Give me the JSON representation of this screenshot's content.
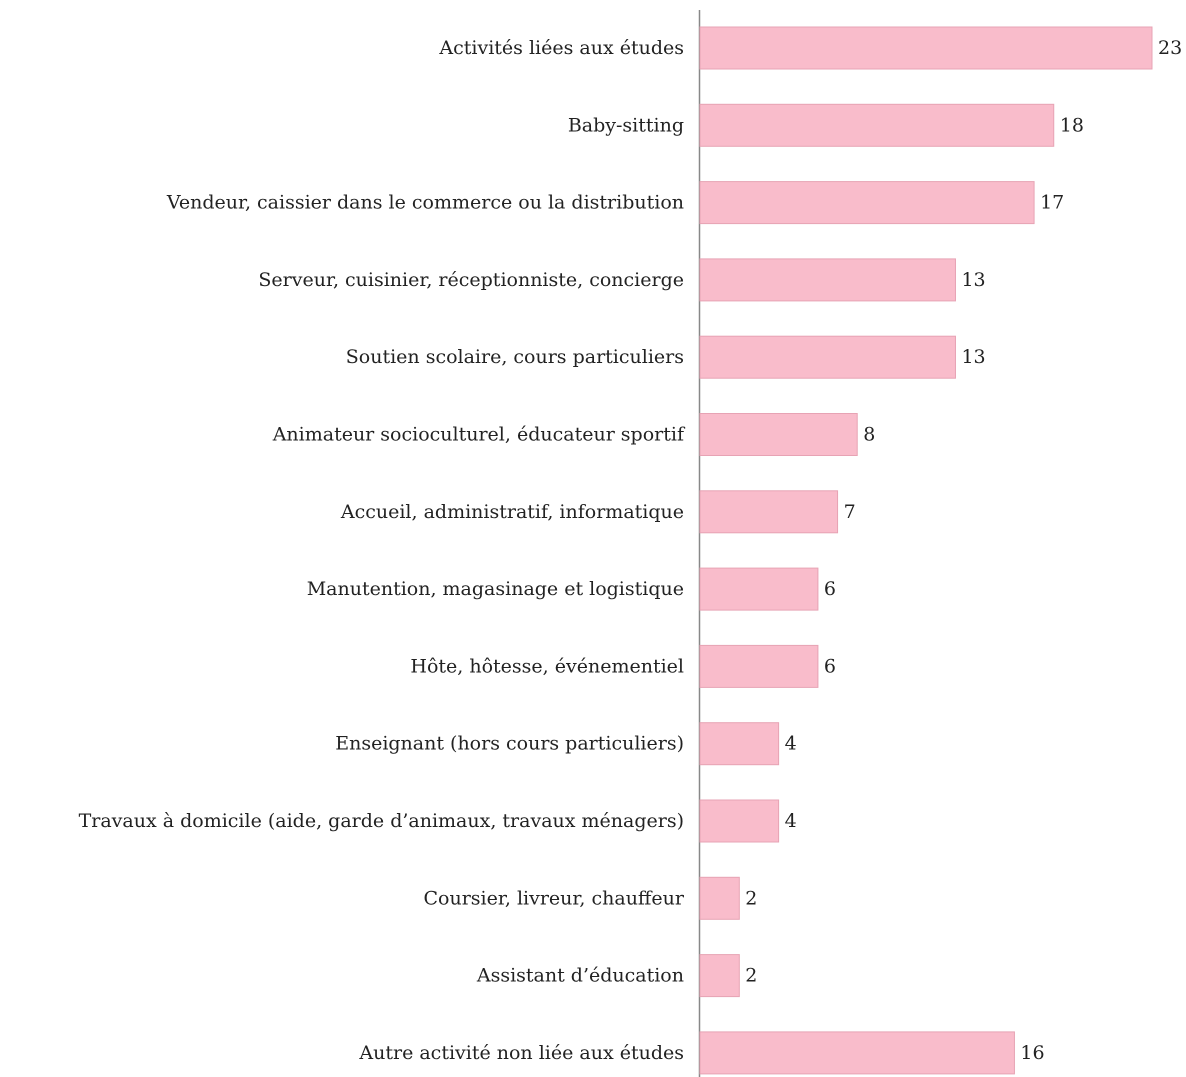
{
  "chart_data": {
    "type": "barh",
    "categories": [
      "Activités liées aux études",
      "Baby-sitting",
      "Vendeur, caissier dans le commerce ou la distribution",
      "Serveur, cuisinier, réceptionniste, concierge",
      "Soutien scolaire, cours particuliers",
      "Animateur socioculturel, éducateur sportif",
      "Accueil, administratif, informatique",
      "Manutention, magasinage et logistique",
      "Hôte, hôtesse, événementiel",
      "Enseignant (hors cours particuliers)",
      "Travaux à domicile (aide, garde d’animaux, travaux ménagers)",
      "Coursier, livreur, chauffeur",
      "Assistant d’éducation",
      "Autre activité non liée aux études"
    ],
    "values": [
      23,
      18,
      17,
      13,
      13,
      8,
      7,
      6,
      6,
      4,
      4,
      2,
      2,
      16
    ],
    "color": "#f9bccb"
  }
}
